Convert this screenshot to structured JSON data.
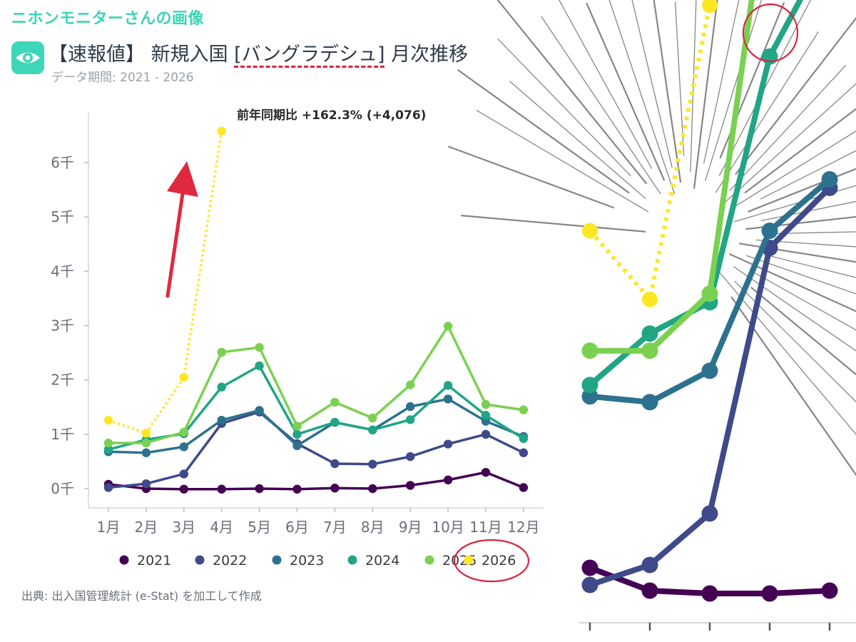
{
  "overlay_title": "ニホンモニターさんの画像",
  "header": {
    "title_prefix": "【速報値】 新規入国 ",
    "title_country": "[バングラデシュ]",
    "title_suffix": " 月次推移",
    "subtitle": "データ期間: 2021 - 2026"
  },
  "annotation": "前年同期比 +162.3% (+4,076)",
  "source": "出典: 出入国管理統計 (e-Stat) を加工して作成",
  "colors": {
    "accent": "#3ed6b8",
    "highlight_red": "#d9243c"
  },
  "chart_data": {
    "type": "line",
    "title": "【速報値】 新規入国 [バングラデシュ] 月次推移",
    "subtitle": "データ期間: 2021 - 2026",
    "xlabel": "",
    "ylabel": "",
    "categories": [
      "1月",
      "2月",
      "3月",
      "4月",
      "5月",
      "6月",
      "7月",
      "8月",
      "9月",
      "10月",
      "11月",
      "12月"
    ],
    "yticks": [
      {
        "value": 0,
        "label": "0千"
      },
      {
        "value": 1000,
        "label": "1千"
      },
      {
        "value": 2000,
        "label": "2千"
      },
      {
        "value": 3000,
        "label": "3千"
      },
      {
        "value": 4000,
        "label": "4千"
      },
      {
        "value": 5000,
        "label": "5千"
      },
      {
        "value": 6000,
        "label": "6千"
      }
    ],
    "ylim": [
      0,
      6800
    ],
    "legend_position": "bottom",
    "series": [
      {
        "name": "2021",
        "color": "#440154",
        "dotted": false,
        "values": [
          80,
          0,
          -10,
          -10,
          0,
          -10,
          10,
          0,
          60,
          160,
          300,
          20
        ]
      },
      {
        "name": "2022",
        "color": "#3f4a8a",
        "dotted": false,
        "values": [
          20,
          90,
          270,
          1200,
          1410,
          830,
          460,
          450,
          590,
          820,
          1000,
          660
        ]
      },
      {
        "name": "2023",
        "color": "#2c728e",
        "dotted": false,
        "values": [
          680,
          660,
          770,
          1260,
          1440,
          790,
          1220,
          1080,
          1510,
          1650,
          1240,
          960
        ]
      },
      {
        "name": "2024",
        "color": "#21a585",
        "dotted": false,
        "values": [
          720,
          900,
          1010,
          1870,
          2260,
          1000,
          1220,
          1080,
          1270,
          1900,
          1350,
          920
        ]
      },
      {
        "name": "2025",
        "color": "#7ad151",
        "dotted": false,
        "values": [
          840,
          840,
          1040,
          2510,
          2600,
          1150,
          1590,
          1300,
          1910,
          2990,
          1550,
          1450
        ]
      },
      {
        "name": "2026",
        "color": "#fde725",
        "dotted": true,
        "values": [
          1260,
          1020,
          2050,
          6580,
          null,
          null,
          null,
          null,
          null,
          null,
          null,
          null
        ]
      }
    ],
    "annotations": [
      "前年同期比 +162.3% (+4,076)"
    ]
  }
}
